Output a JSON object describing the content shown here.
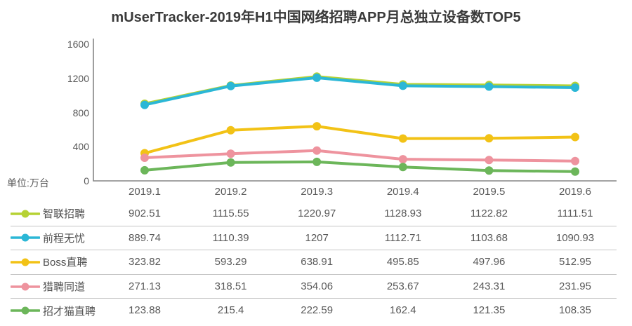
{
  "title": "mUserTracker-2019年H1中国网络招聘APP月总独立设备数TOP5",
  "unit_label": "单位:万台",
  "colors": {
    "axis": "#858585",
    "separator": "#c5c5c5",
    "title_text": "#3a3a3a",
    "label_text": "#595959"
  },
  "chart_data": {
    "type": "line",
    "title": "mUserTracker-2019年H1中国网络招聘APP月总独立设备数TOP5",
    "unit": "单位:万台",
    "categories": [
      "2019.1",
      "2019.2",
      "2019.3",
      "2019.4",
      "2019.5",
      "2019.6"
    ],
    "series": [
      {
        "name": "智联招聘",
        "color": "#b6d234",
        "values": [
          902.51,
          1115.55,
          1220.97,
          1128.93,
          1122.82,
          1111.51
        ]
      },
      {
        "name": "前程无忧",
        "color": "#2bb7d6",
        "values": [
          889.74,
          1110.39,
          1207,
          1112.71,
          1103.68,
          1090.93
        ]
      },
      {
        "name": "Boss直聘",
        "color": "#f2c216",
        "values": [
          323.82,
          593.29,
          638.91,
          495.85,
          497.96,
          512.95
        ]
      },
      {
        "name": "猎聘同道",
        "color": "#ee939e",
        "values": [
          271.13,
          318.51,
          354.06,
          253.67,
          243.31,
          231.95
        ]
      },
      {
        "name": "招才猫直聘",
        "color": "#6cb65a",
        "values": [
          123.88,
          215.4,
          222.59,
          162.4,
          121.35,
          108.35
        ]
      }
    ],
    "ylim": [
      0,
      1600
    ],
    "yticks": [
      1600,
      1200,
      800,
      400,
      0
    ],
    "grid": false,
    "legend_position": "bottom-table"
  }
}
